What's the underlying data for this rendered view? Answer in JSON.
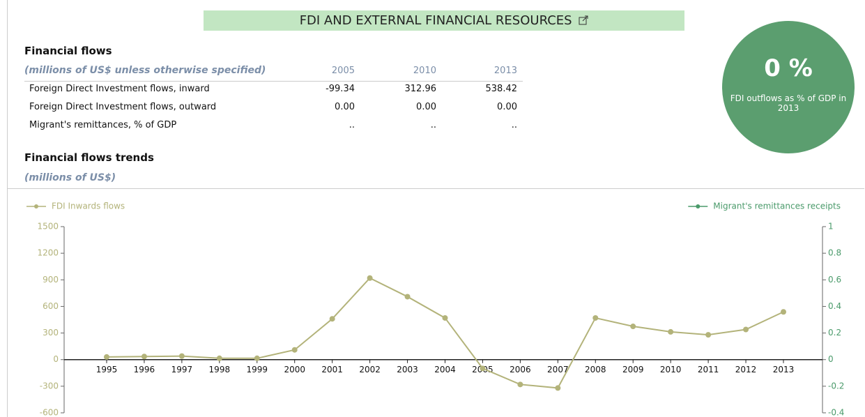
{
  "header": {
    "title": "FDI AND EXTERNAL FINANCIAL RESOURCES"
  },
  "table": {
    "title": "Financial flows",
    "unit": "(millions of US$ unless otherwise specified)",
    "columns": [
      "2005",
      "2010",
      "2013"
    ],
    "rows": [
      [
        "Foreign Direct Investment flows, inward",
        "-99.34",
        "312.96",
        "538.42"
      ],
      [
        "Foreign Direct Investment flows, outward",
        "0.00",
        "0.00",
        "0.00"
      ],
      [
        "Migrant's remittances, % of GDP",
        "..",
        "..",
        ".."
      ]
    ]
  },
  "badge": {
    "value": "0 %",
    "caption": "FDI outflows as % of GDP in 2013"
  },
  "trends": {
    "title": "Financial flows trends",
    "unit": "(millions of US$)"
  },
  "chart_data": {
    "type": "line",
    "categories": [
      "1995",
      "1996",
      "1997",
      "1998",
      "1999",
      "2000",
      "2001",
      "2002",
      "2003",
      "2004",
      "2005",
      "2006",
      "2007",
      "2008",
      "2009",
      "2010",
      "2011",
      "2012",
      "2013"
    ],
    "series": [
      {
        "name": "FDI Inwards flows",
        "color": "#b3b37a",
        "values": [
          30,
          35,
          40,
          15,
          15,
          110,
          460,
          920,
          710,
          470,
          -99.34,
          -280,
          -320,
          470,
          375,
          312.96,
          280,
          340,
          538.42
        ]
      },
      {
        "name": "Migrant's remittances receipts",
        "color": "#4a9a6a",
        "axis": "y2",
        "values": [
          null,
          null,
          null,
          null,
          null,
          null,
          null,
          null,
          null,
          null,
          null,
          null,
          null,
          null,
          null,
          null,
          null,
          null,
          null
        ]
      }
    ],
    "ylim": [
      -600,
      1500
    ],
    "yticks": [
      -600,
      -300,
      0,
      300,
      600,
      900,
      1200,
      1500
    ],
    "y2lim": [
      -0.4,
      1
    ],
    "y2ticks": [
      -0.4,
      -0.2,
      0,
      0.2,
      0.4,
      0.6,
      0.8,
      1
    ],
    "legend": "top"
  }
}
